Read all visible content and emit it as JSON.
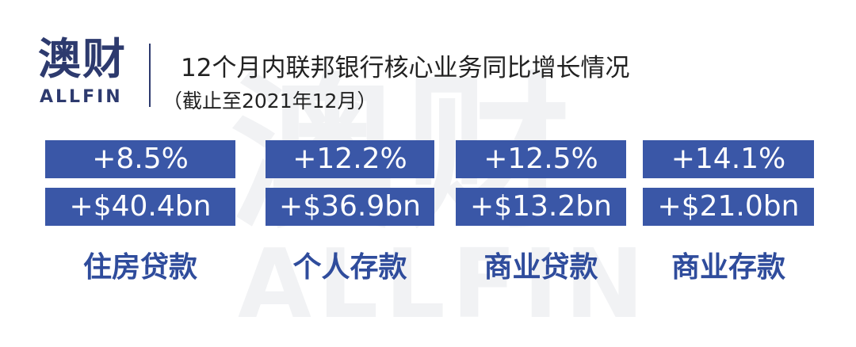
{
  "logo": {
    "mark": "澳财",
    "brand": "ALLFIN"
  },
  "watermark": {
    "mark": "澳财",
    "brand": "ALLFIN"
  },
  "header": {
    "title": "12个月内联邦银行核心业务同比增长情况",
    "subtitle": "（截止至2021年12月）"
  },
  "cards": [
    {
      "change": "+8.5%",
      "amount": "+$40.4bn",
      "label": "住房贷款"
    },
    {
      "change": "+12.2%",
      "amount": "+$36.9bn",
      "label": "个人存款"
    },
    {
      "change": "+12.5%",
      "amount": "+$13.2bn",
      "label": "商业贷款"
    },
    {
      "change": "+14.1%",
      "amount": "+$21.0bn",
      "label": "商业存款"
    }
  ]
}
